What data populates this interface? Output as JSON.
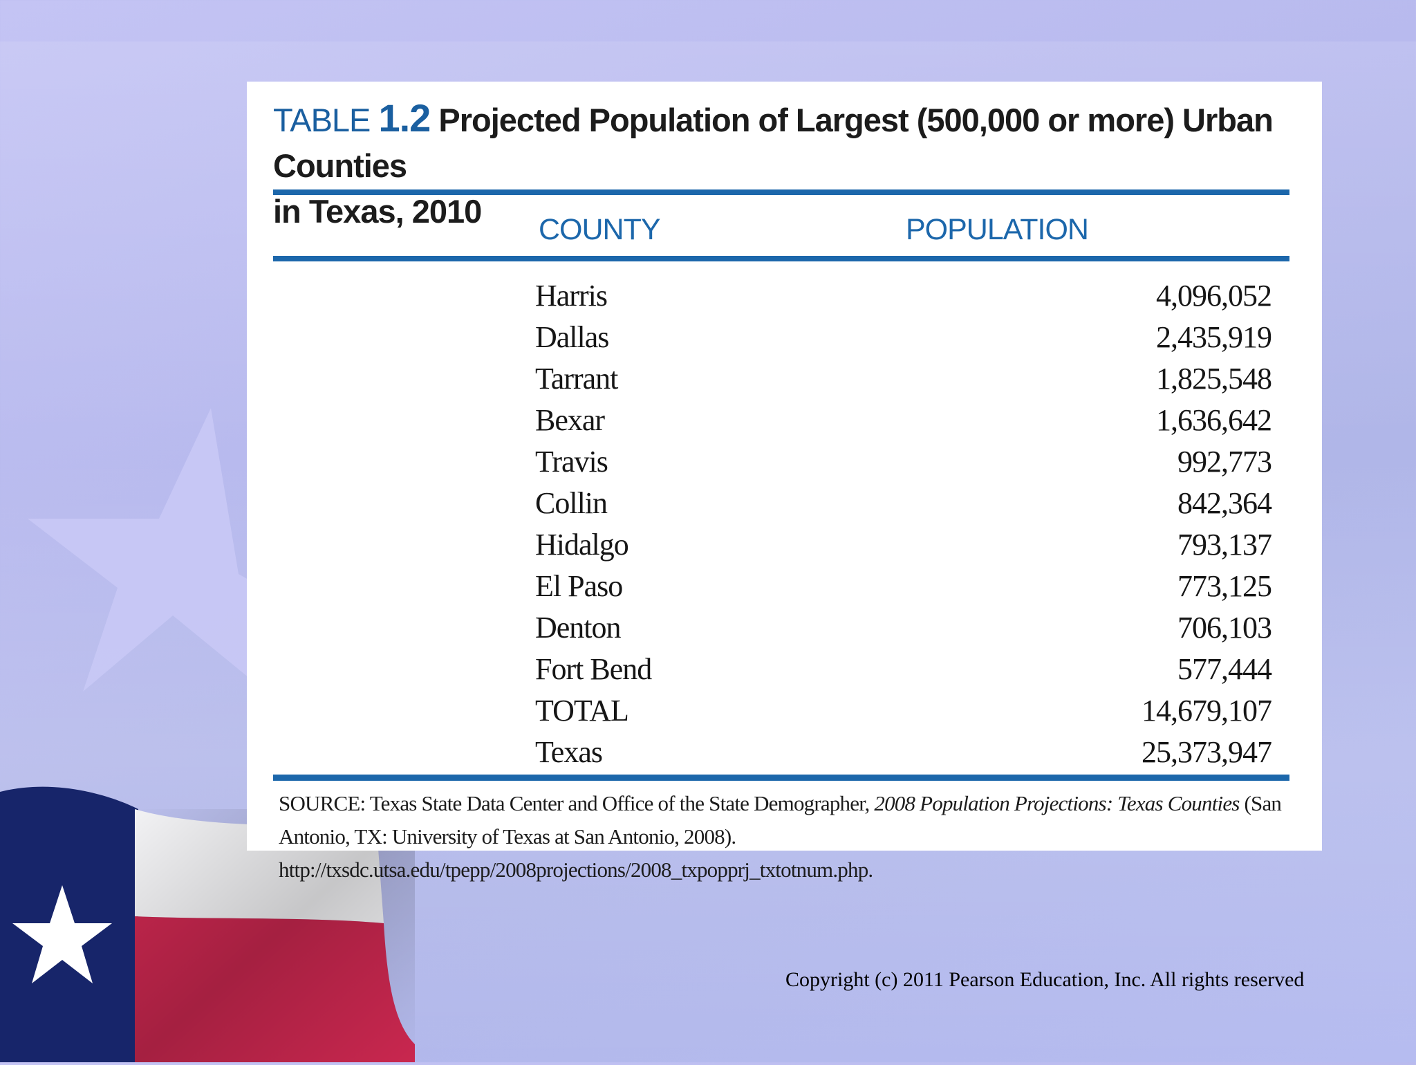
{
  "table": {
    "label": "TABLE",
    "number": "1.2",
    "title_line1": "Projected Population of Largest (500,000 or more) Urban Counties",
    "title_line2": "in Texas, 2010",
    "headers": {
      "county": "COUNTY",
      "population": "POPULATION"
    },
    "rows": [
      {
        "county": "Harris",
        "population": "4,096,052"
      },
      {
        "county": "Dallas",
        "population": "2,435,919"
      },
      {
        "county": "Tarrant",
        "population": "1,825,548"
      },
      {
        "county": "Bexar",
        "population": "1,636,642"
      },
      {
        "county": "Travis",
        "population": "992,773"
      },
      {
        "county": "Collin",
        "population": "842,364"
      },
      {
        "county": "Hidalgo",
        "population": "793,137"
      },
      {
        "county": "El Paso",
        "population": "773,125"
      },
      {
        "county": "Denton",
        "population": "706,103"
      },
      {
        "county": "Fort Bend",
        "population": "577,444"
      },
      {
        "county": "TOTAL",
        "population": "14,679,107"
      },
      {
        "county": "Texas",
        "population": "25,373,947"
      }
    ],
    "source_prefix": "SOURCE: Texas State Data Center and Office of the State Demographer, ",
    "source_italic": "2008 Population Projections: Texas Counties",
    "source_suffix": " (San Antonio, TX: University of Texas at San Antonio, 2008). http://txsdc.utsa.edu/tpepp/2008projections/2008_txpopprj_txtotnum.php."
  },
  "footer": {
    "copyright": "Copyright (c) 2011 Pearson Education, Inc. All rights reserved"
  },
  "colors": {
    "accent_blue": "#1c67ab",
    "background": "#b8baee",
    "flag_blue": "#1a2a6c",
    "flag_red": "#c0284f"
  },
  "icons": {
    "background_star": "star-shape",
    "flag": "texas-flag"
  }
}
